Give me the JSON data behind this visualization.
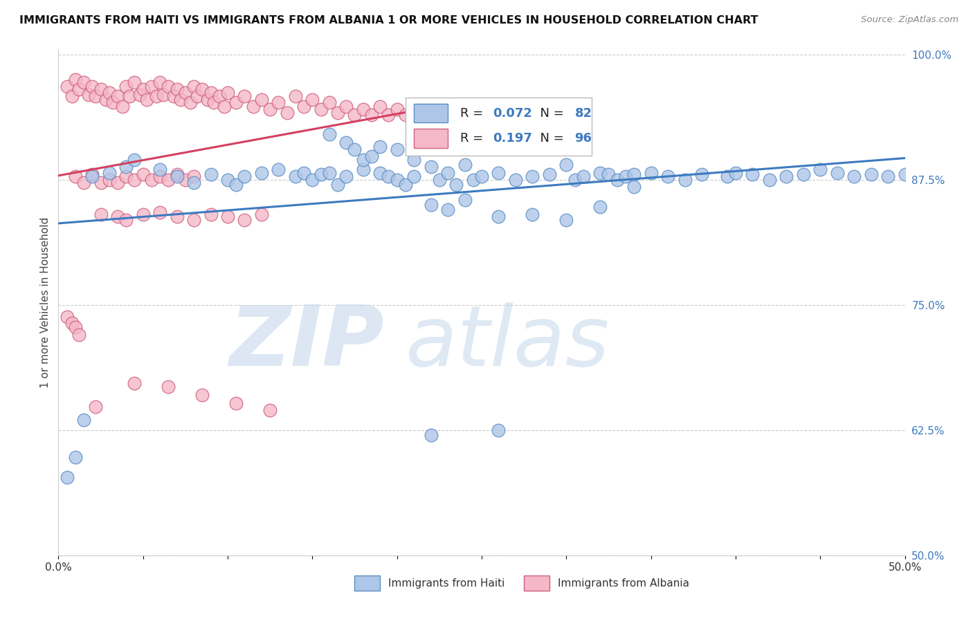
{
  "title": "IMMIGRANTS FROM HAITI VS IMMIGRANTS FROM ALBANIA 1 OR MORE VEHICLES IN HOUSEHOLD CORRELATION CHART",
  "source": "Source: ZipAtlas.com",
  "ylabel": "1 or more Vehicles in Household",
  "xlim": [
    0.0,
    0.5
  ],
  "ylim": [
    0.5,
    1.005
  ],
  "yticks": [
    0.5,
    0.625,
    0.75,
    0.875,
    1.0
  ],
  "ytick_labels": [
    "50.0%",
    "62.5%",
    "75.0%",
    "87.5%",
    "100.0%"
  ],
  "haiti_color": "#aec6e8",
  "haiti_edge_color": "#5b8ec4",
  "albania_color": "#f4b8c8",
  "albania_edge_color": "#d06080",
  "trend_haiti_color": "#3d7abf",
  "trend_albania_color": "#d44060",
  "R_haiti": 0.072,
  "N_haiti": 82,
  "R_albania": 0.197,
  "N_albania": 96,
  "legend_label_haiti": "Immigrants from Haiti",
  "legend_label_albania": "Immigrants from Albania",
  "watermark_zip": "ZIP",
  "watermark_atlas": "atlas",
  "haiti_x": [
    0.005,
    0.01,
    0.015,
    0.02,
    0.03,
    0.04,
    0.045,
    0.06,
    0.07,
    0.08,
    0.09,
    0.1,
    0.105,
    0.11,
    0.12,
    0.13,
    0.14,
    0.145,
    0.15,
    0.155,
    0.16,
    0.165,
    0.17,
    0.18,
    0.19,
    0.195,
    0.2,
    0.205,
    0.21,
    0.22,
    0.225,
    0.23,
    0.235,
    0.24,
    0.245,
    0.25,
    0.26,
    0.27,
    0.28,
    0.29,
    0.3,
    0.305,
    0.31,
    0.32,
    0.325,
    0.33,
    0.335,
    0.34,
    0.35,
    0.36,
    0.37,
    0.38,
    0.395,
    0.4,
    0.41,
    0.42,
    0.43,
    0.44,
    0.45,
    0.46,
    0.47,
    0.48,
    0.49,
    0.5,
    0.16,
    0.17,
    0.175,
    0.18,
    0.185,
    0.19,
    0.2,
    0.21,
    0.22,
    0.23,
    0.24,
    0.26,
    0.28,
    0.3,
    0.32,
    0.34,
    0.22,
    0.26
  ],
  "haiti_y": [
    0.578,
    0.598,
    0.635,
    0.878,
    0.882,
    0.888,
    0.895,
    0.885,
    0.878,
    0.872,
    0.88,
    0.875,
    0.87,
    0.878,
    0.882,
    0.885,
    0.878,
    0.882,
    0.875,
    0.88,
    0.882,
    0.87,
    0.878,
    0.885,
    0.882,
    0.878,
    0.875,
    0.87,
    0.878,
    0.888,
    0.875,
    0.882,
    0.87,
    0.89,
    0.875,
    0.878,
    0.882,
    0.875,
    0.878,
    0.88,
    0.89,
    0.875,
    0.878,
    0.882,
    0.88,
    0.875,
    0.878,
    0.88,
    0.882,
    0.878,
    0.875,
    0.88,
    0.878,
    0.882,
    0.88,
    0.875,
    0.878,
    0.88,
    0.885,
    0.882,
    0.878,
    0.88,
    0.878,
    0.88,
    0.92,
    0.912,
    0.905,
    0.895,
    0.898,
    0.908,
    0.905,
    0.895,
    0.85,
    0.845,
    0.855,
    0.838,
    0.84,
    0.835,
    0.848,
    0.868,
    0.62,
    0.625
  ],
  "albania_x": [
    0.005,
    0.008,
    0.01,
    0.012,
    0.015,
    0.018,
    0.02,
    0.022,
    0.025,
    0.028,
    0.03,
    0.032,
    0.035,
    0.038,
    0.04,
    0.042,
    0.045,
    0.048,
    0.05,
    0.052,
    0.055,
    0.058,
    0.06,
    0.062,
    0.065,
    0.068,
    0.07,
    0.072,
    0.075,
    0.078,
    0.08,
    0.082,
    0.085,
    0.088,
    0.09,
    0.092,
    0.095,
    0.098,
    0.1,
    0.105,
    0.11,
    0.115,
    0.12,
    0.125,
    0.13,
    0.135,
    0.14,
    0.145,
    0.15,
    0.155,
    0.16,
    0.165,
    0.17,
    0.175,
    0.18,
    0.185,
    0.19,
    0.195,
    0.2,
    0.205,
    0.01,
    0.015,
    0.02,
    0.025,
    0.03,
    0.035,
    0.04,
    0.045,
    0.05,
    0.055,
    0.06,
    0.065,
    0.07,
    0.075,
    0.08,
    0.025,
    0.035,
    0.04,
    0.05,
    0.06,
    0.07,
    0.08,
    0.09,
    0.1,
    0.11,
    0.12,
    0.005,
    0.008,
    0.01,
    0.012,
    0.022,
    0.045,
    0.065,
    0.085,
    0.105,
    0.125
  ],
  "albania_y": [
    0.968,
    0.958,
    0.975,
    0.965,
    0.972,
    0.96,
    0.968,
    0.958,
    0.965,
    0.955,
    0.962,
    0.952,
    0.958,
    0.948,
    0.968,
    0.958,
    0.972,
    0.96,
    0.965,
    0.955,
    0.968,
    0.958,
    0.972,
    0.96,
    0.968,
    0.958,
    0.965,
    0.955,
    0.962,
    0.952,
    0.968,
    0.958,
    0.965,
    0.955,
    0.962,
    0.952,
    0.958,
    0.948,
    0.962,
    0.952,
    0.958,
    0.948,
    0.955,
    0.945,
    0.952,
    0.942,
    0.958,
    0.948,
    0.955,
    0.945,
    0.952,
    0.942,
    0.948,
    0.94,
    0.945,
    0.94,
    0.948,
    0.94,
    0.945,
    0.94,
    0.878,
    0.872,
    0.88,
    0.872,
    0.875,
    0.872,
    0.878,
    0.875,
    0.88,
    0.875,
    0.878,
    0.875,
    0.88,
    0.875,
    0.878,
    0.84,
    0.838,
    0.835,
    0.84,
    0.842,
    0.838,
    0.835,
    0.84,
    0.838,
    0.835,
    0.84,
    0.738,
    0.732,
    0.728,
    0.72,
    0.648,
    0.672,
    0.668,
    0.66,
    0.652,
    0.645
  ]
}
